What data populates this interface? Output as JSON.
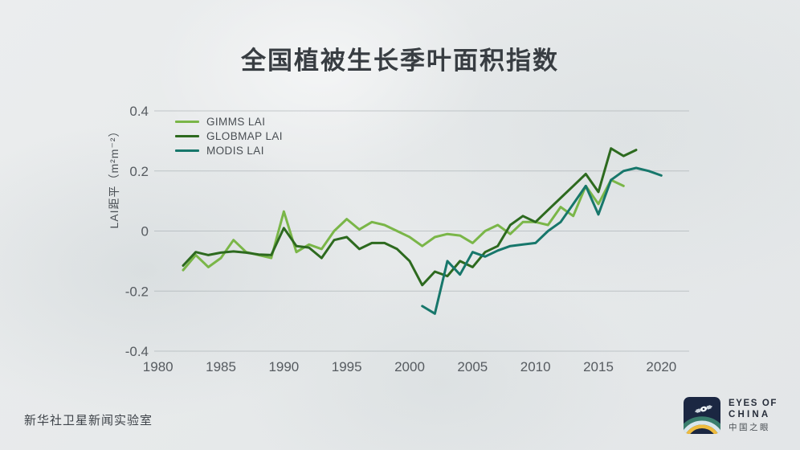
{
  "chart_data": {
    "type": "line",
    "title": "全国植被生长季叶面积指数",
    "ylabel": "LAI距平（m²m⁻²）",
    "xlabel": "",
    "ylim": [
      -0.4,
      0.4
    ],
    "yticks": [
      0.4,
      0.2,
      0,
      -0.2,
      -0.4
    ],
    "xticks": [
      1980,
      1985,
      1990,
      1995,
      2000,
      2005,
      2010,
      2015,
      2020
    ],
    "xlim": [
      1980,
      2022
    ],
    "grid": true,
    "legend_position": "top-left",
    "series": [
      {
        "name": "GIMMS LAI",
        "color": "#7ab648",
        "start_year": 1982,
        "values": [
          -0.13,
          -0.08,
          -0.12,
          -0.09,
          -0.03,
          -0.07,
          -0.08,
          -0.09,
          0.065,
          -0.07,
          -0.045,
          -0.06,
          0.0,
          0.04,
          0.005,
          0.03,
          0.02,
          0.0,
          -0.02,
          -0.05,
          -0.02,
          -0.01,
          -0.015,
          -0.04,
          0.0,
          0.02,
          -0.01,
          0.03,
          0.03,
          0.02,
          0.08,
          0.05,
          0.15,
          0.09,
          0.17,
          0.15
        ]
      },
      {
        "name": "GLOBMAP LAI",
        "color": "#2d6a1f",
        "start_year": 1982,
        "values": [
          -0.115,
          -0.07,
          -0.08,
          -0.072,
          -0.068,
          -0.072,
          -0.078,
          -0.08,
          0.01,
          -0.05,
          -0.055,
          -0.09,
          -0.03,
          -0.02,
          -0.06,
          -0.04,
          -0.04,
          -0.06,
          -0.1,
          -0.18,
          -0.135,
          -0.15,
          -0.1,
          -0.12,
          -0.07,
          -0.05,
          0.02,
          0.05,
          0.03,
          0.07,
          0.11,
          0.15,
          0.19,
          0.13,
          0.275,
          0.25,
          0.27
        ]
      },
      {
        "name": "MODIS LAI",
        "color": "#17776b",
        "start_year": 2001,
        "values": [
          -0.25,
          -0.275,
          -0.1,
          -0.145,
          -0.07,
          -0.085,
          -0.065,
          -0.05,
          -0.045,
          -0.04,
          0.0,
          0.03,
          0.09,
          0.15,
          0.055,
          0.17,
          0.2,
          0.21,
          0.2,
          0.185
        ]
      }
    ]
  },
  "footer": {
    "left_text": "新华社卫星新闻实验室",
    "brand": {
      "line1": "EYES OF",
      "line2": "CHINA",
      "line3": "中国之眼"
    }
  }
}
